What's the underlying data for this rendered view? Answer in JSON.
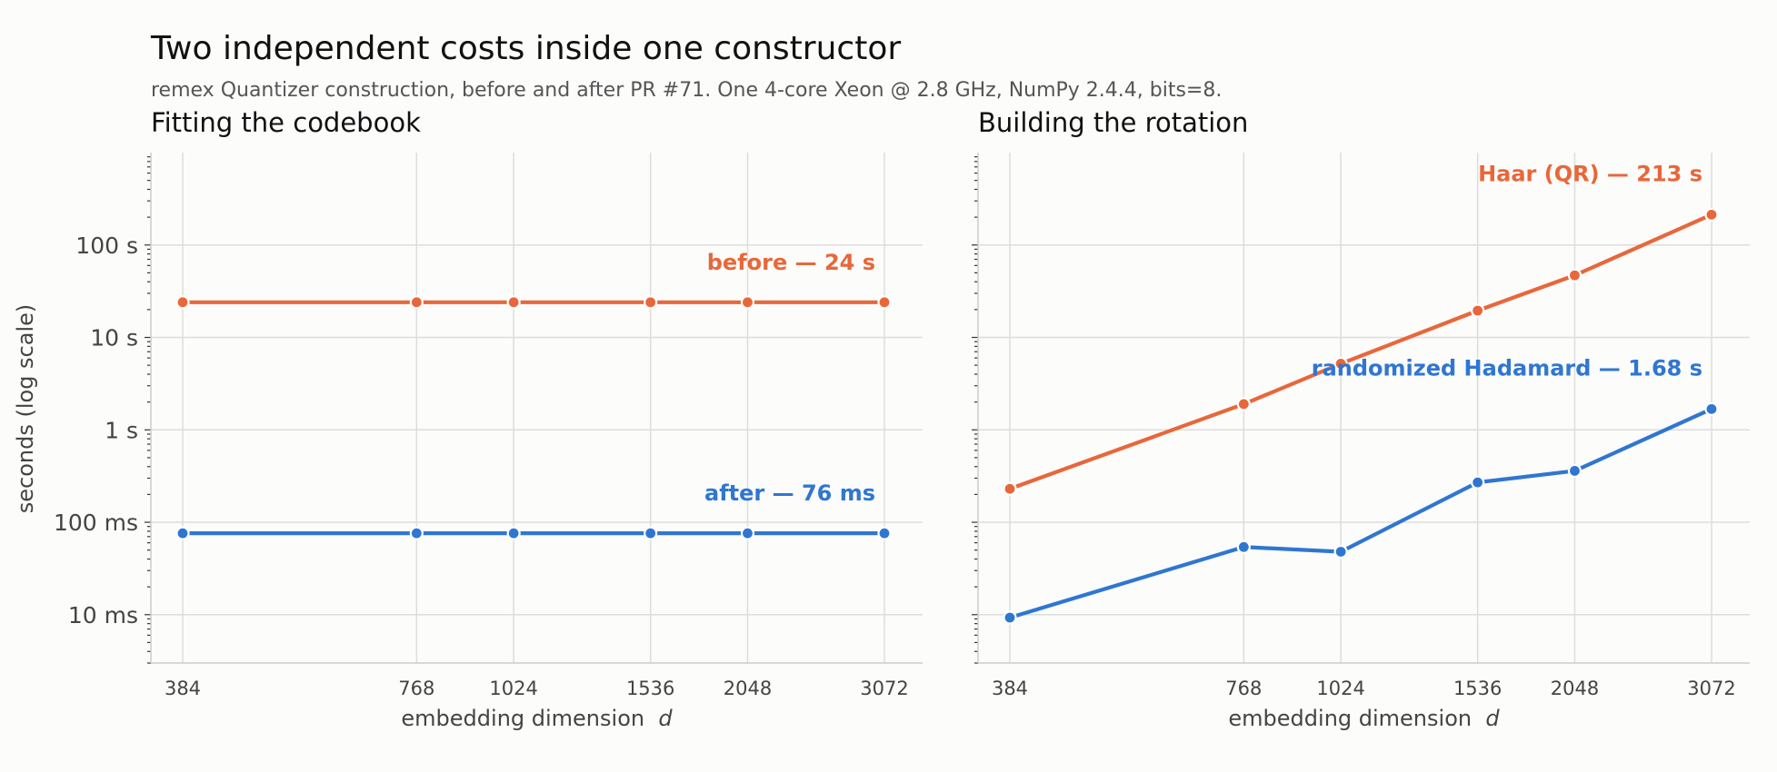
{
  "title": "Two independent costs inside one constructor",
  "subtitle": "remex Quantizer construction, before and after PR #71. One 4-core Xeon @ 2.8 GHz, NumPy 2.4.4, bits=8.",
  "colors": {
    "orange": "#e8673a",
    "blue": "#2f76d1"
  },
  "chart_data": [
    {
      "type": "line",
      "title": "Fitting the codebook",
      "xlabel": "embedding dimension",
      "xlabel_var": "d",
      "ylabel": "seconds  (log scale)",
      "yscale": "log",
      "ylim": [
        0.003,
        1000
      ],
      "yticks": [
        0.01,
        0.1,
        1,
        10,
        100
      ],
      "ytick_labels": [
        "10 ms",
        "100 ms",
        "1 s",
        "10 s",
        "100 s"
      ],
      "x": [
        384,
        768,
        1024,
        1536,
        2048,
        3072
      ],
      "x_labels": [
        "384",
        "768",
        "1024",
        "1536",
        "2048",
        "3072"
      ],
      "grid": true,
      "series": [
        {
          "name": "before — 24 s",
          "color": "#e8673a",
          "values": [
            24,
            24,
            24,
            24,
            24,
            24
          ]
        },
        {
          "name": "after — 76 ms",
          "color": "#2f76d1",
          "values": [
            0.076,
            0.076,
            0.076,
            0.076,
            0.076,
            0.076
          ]
        }
      ]
    },
    {
      "type": "line",
      "title": "Building the rotation",
      "xlabel": "embedding dimension",
      "xlabel_var": "d",
      "yscale": "log",
      "ylim": [
        0.003,
        1000
      ],
      "x": [
        384,
        768,
        1024,
        1536,
        2048,
        3072
      ],
      "x_labels": [
        "384",
        "768",
        "1024",
        "1536",
        "2048",
        "3072"
      ],
      "grid": true,
      "series": [
        {
          "name": "Haar (QR) — 213 s",
          "color": "#e8673a",
          "values": [
            0.23,
            1.9,
            5.2,
            19.5,
            47,
            213
          ]
        },
        {
          "name": "randomized Hadamard — 1.68 s",
          "color": "#2f76d1",
          "values": [
            0.0093,
            0.054,
            0.048,
            0.27,
            0.36,
            1.68
          ]
        }
      ]
    }
  ]
}
